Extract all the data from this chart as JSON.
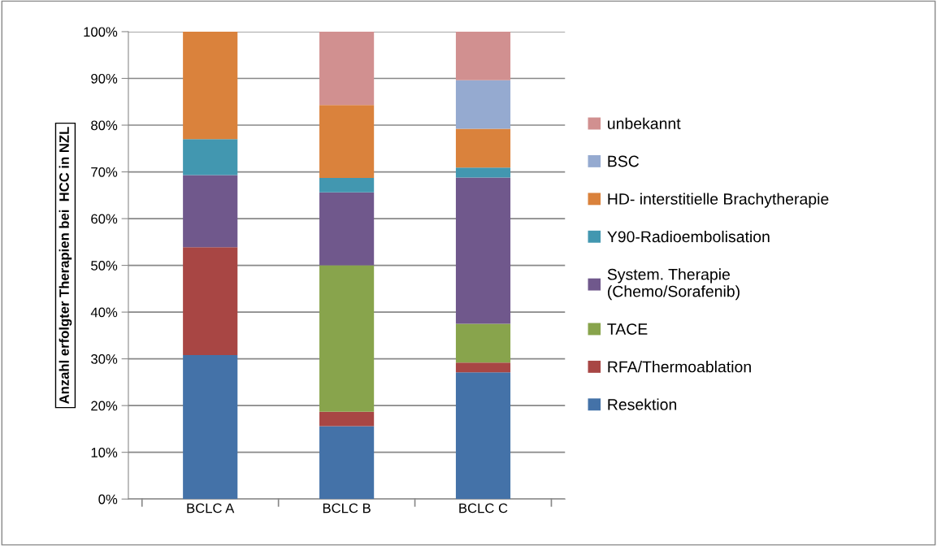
{
  "chart_data": {
    "type": "bar",
    "stacked": true,
    "ylabel": "Anzahl erfolgter Therapien bei  HCC in NZL",
    "categories": [
      "BCLC A",
      "BCLC B",
      "BCLC C"
    ],
    "series": [
      {
        "name": "Resektion",
        "color": "#4472a8",
        "values": [
          30.8,
          15.6,
          27.1
        ]
      },
      {
        "name": "RFA/Thermoablation",
        "color": "#a84644",
        "values": [
          23.1,
          3.1,
          2.1
        ]
      },
      {
        "name": "TACE",
        "color": "#88a44c",
        "values": [
          0,
          31.3,
          8.3
        ]
      },
      {
        "name": "System. Therapie\n(Chemo/Sorafenib)",
        "color": "#70588c",
        "values": [
          15.4,
          15.6,
          31.3
        ]
      },
      {
        "name": "Y90-Radioembolisation",
        "color": "#4297b0",
        "values": [
          7.7,
          3.1,
          2.1
        ]
      },
      {
        "name": "HD- interstitielle Brachytherapie",
        "color": "#da823c",
        "values": [
          23.1,
          15.6,
          8.3
        ]
      },
      {
        "name": "BSC",
        "color": "#95aad0",
        "values": [
          0,
          0,
          10.4
        ]
      },
      {
        "name": "unbekannt",
        "color": "#d19090",
        "values": [
          0,
          15.7,
          10.4
        ]
      }
    ],
    "ylim": [
      0,
      100
    ],
    "yticks": [
      {
        "value": 0,
        "label": "0%"
      },
      {
        "value": 10,
        "label": "10%"
      },
      {
        "value": 20,
        "label": "20%"
      },
      {
        "value": 30,
        "label": "30%"
      },
      {
        "value": 40,
        "label": "40%"
      },
      {
        "value": 50,
        "label": "50%"
      },
      {
        "value": 60,
        "label": "60%"
      },
      {
        "value": 70,
        "label": "70%"
      },
      {
        "value": 80,
        "label": "80%"
      },
      {
        "value": 90,
        "label": "90%"
      },
      {
        "value": 100,
        "label": "100%"
      }
    ],
    "grid": "y",
    "legend": "right"
  }
}
